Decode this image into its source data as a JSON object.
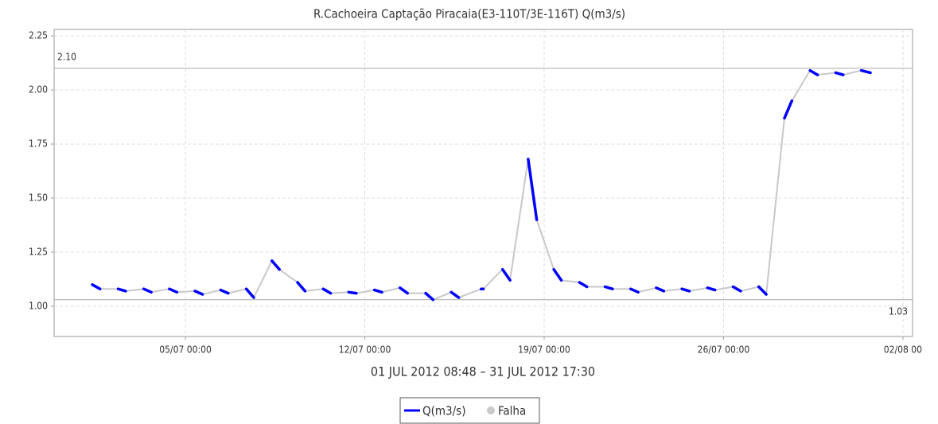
{
  "chart_data": {
    "type": "line",
    "title": "R.Cachoeira Captação Piracaia(E3-110T/3E-116T) Q(m3/s)",
    "subtitle": "01 JUL 2012 08:48 – 31 JUL 2012 17:30",
    "x": [
      "01/07 08:48",
      "01/07 16:00",
      null,
      "02/07 09:00",
      "02/07 16:00",
      null,
      "03/07 09:00",
      "03/07 16:00",
      null,
      "04/07 09:00",
      "04/07 16:00",
      null,
      "05/07 09:00",
      "05/07 16:00",
      null,
      "06/07 09:00",
      "06/07 16:00",
      null,
      "07/07 09:00",
      "07/07 16:00",
      null,
      "08/07 09:00",
      "08/07 16:00",
      null,
      "09/07 09:00",
      "09/07 16:00",
      null,
      "10/07 09:00",
      "10/07 16:00",
      null,
      "11/07 09:00",
      "11/07 16:00",
      null,
      "12/07 09:00",
      "12/07 16:00",
      null,
      "13/07 09:00",
      "13/07 16:00",
      null,
      "14/07 09:00",
      "14/07 16:00",
      null,
      "15/07 09:00",
      "15/07 16:00",
      null,
      "16/07 13:00",
      "16/07 15:00",
      null,
      "17/07 09:00",
      "17/07 16:00",
      null,
      "18/07 09:00",
      "18/07 17:00",
      null,
      "19/07 09:00",
      "19/07 16:00",
      null,
      "20/07 09:00",
      "20/07 16:00",
      null,
      "21/07 09:00",
      "21/07 16:00",
      null,
      "22/07 09:00",
      "22/07 16:00",
      null,
      "23/07 09:00",
      "23/07 16:00",
      null,
      "24/07 09:00",
      "24/07 16:00",
      null,
      "25/07 09:00",
      "25/07 16:00",
      null,
      "26/07 09:00",
      "26/07 16:00",
      null,
      "27/07 09:00",
      "27/07 16:00",
      null,
      "28/07 09:00",
      "28/07 16:00",
      null,
      "29/07 09:00",
      "29/07 16:00",
      null,
      "30/07 09:00",
      "30/07 16:00",
      null,
      "31/07 09:00",
      "31/07 17:30"
    ],
    "series": [
      {
        "name": "Q(m3/s)",
        "color": "#0000ff",
        "values": [
          1.1,
          1.08,
          null,
          1.08,
          1.07,
          null,
          1.08,
          1.065,
          null,
          1.08,
          1.065,
          null,
          1.07,
          1.055,
          null,
          1.075,
          1.06,
          null,
          1.08,
          1.04,
          null,
          1.21,
          1.17,
          null,
          1.11,
          1.07,
          null,
          1.08,
          1.06,
          null,
          1.065,
          1.06,
          null,
          1.075,
          1.065,
          null,
          1.085,
          1.06,
          null,
          1.06,
          1.03,
          null,
          1.065,
          1.04,
          null,
          1.08,
          1.08,
          null,
          1.17,
          1.12,
          null,
          1.68,
          1.4,
          null,
          1.17,
          1.12,
          null,
          1.11,
          1.09,
          null,
          1.09,
          1.08,
          null,
          1.08,
          1.065,
          null,
          1.085,
          1.07,
          null,
          1.08,
          1.07,
          null,
          1.085,
          1.075,
          null,
          1.09,
          1.07,
          null,
          1.09,
          1.055,
          null,
          1.87,
          1.95,
          null,
          2.09,
          2.07,
          null,
          2.08,
          2.07,
          null,
          2.09,
          2.08
        ]
      }
    ],
    "failure": {
      "name": "Falha",
      "color": "#c8c8c8"
    },
    "xlim": [
      "29/06 21:00",
      "02/08 09:00"
    ],
    "xticks": [
      "05/07 00:00",
      "12/07 00:00",
      "19/07 00:00",
      "26/07 00:00",
      {
        "value": "02/08 00:00",
        "label": "02/08 00"
      }
    ],
    "ylim": [
      0.86,
      2.28
    ],
    "yticks": [
      {
        "value": 1,
        "label": "1.00"
      },
      1.25,
      {
        "value": 1.5,
        "label": "1.50"
      },
      1.75,
      {
        "value": 2,
        "label": "2.00"
      },
      2.25
    ],
    "reference_lines": [
      {
        "value": 2.1,
        "label": "2.10"
      },
      1.03
    ],
    "grid": true
  }
}
